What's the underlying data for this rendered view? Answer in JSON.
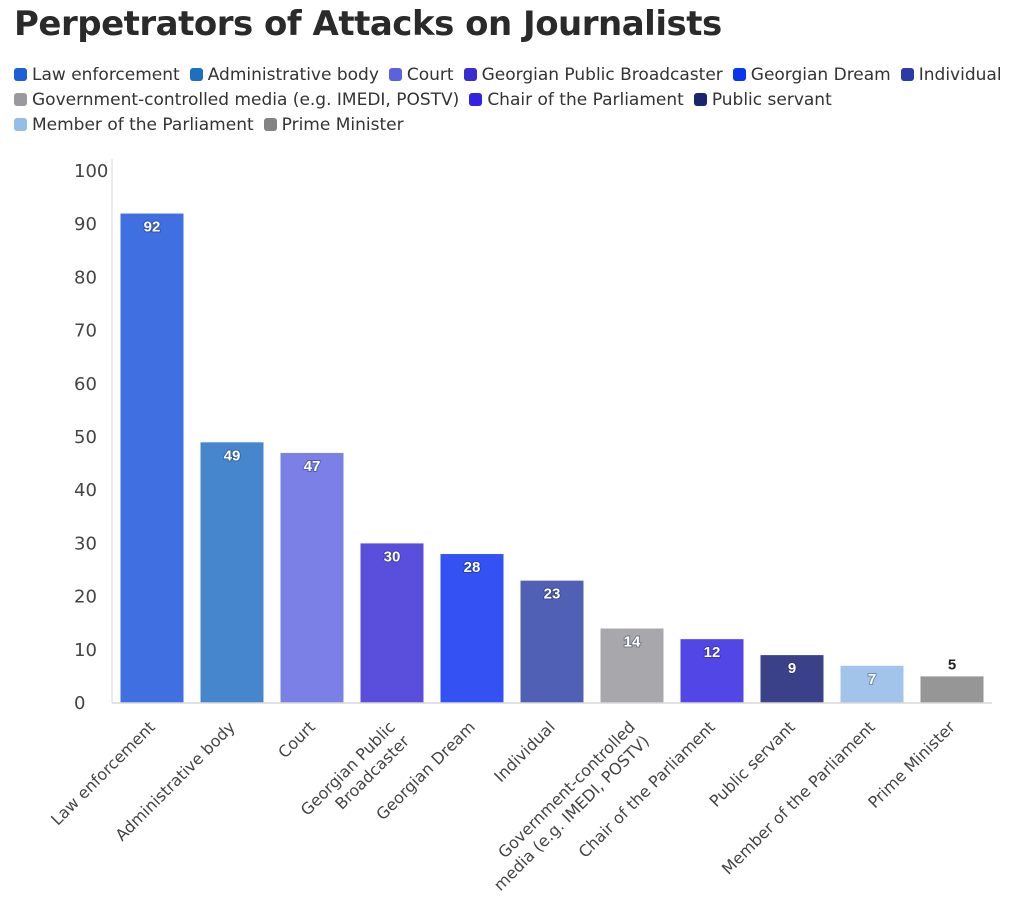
{
  "chart_data": {
    "type": "bar",
    "title": "Perpetrators of Attacks on Journalists",
    "xlabel": "",
    "ylabel": "",
    "ylim": [
      0,
      100
    ],
    "yticks": [
      0,
      10,
      20,
      30,
      40,
      50,
      60,
      70,
      80,
      90,
      100
    ],
    "grid": false,
    "legend_position": "top",
    "categories": [
      "Law enforcement",
      "Administrative body",
      "Court",
      "Georgian Public Broadcaster",
      "Georgian Dream",
      "Individual",
      "Government-controlled media (e.g. IMEDI, POSTV)",
      "Chair of the Parliament",
      "Public servant",
      "Member of the Parliament",
      "Prime Minister"
    ],
    "category_label_lines": [
      [
        "Law enforcement"
      ],
      [
        "Administrative body"
      ],
      [
        "Court"
      ],
      [
        "Georgian Public",
        "Broadcaster"
      ],
      [
        "Georgian Dream"
      ],
      [
        "Individual"
      ],
      [
        "Government-controlled",
        "media (e.g. IMEDI, POSTV)"
      ],
      [
        "Chair of the Parliament"
      ],
      [
        "Public servant"
      ],
      [
        "Member of the Parliament"
      ],
      [
        "Prime Minister"
      ]
    ],
    "values": [
      92,
      49,
      47,
      30,
      28,
      23,
      14,
      12,
      9,
      7,
      5
    ],
    "bar_colors": [
      "#3f6fe0",
      "#4686cc",
      "#7a80e6",
      "#5a4fdc",
      "#3451f3",
      "#5060b4",
      "#a8a8ac",
      "#5246e6",
      "#3b4189",
      "#a2c4ea",
      "#969696"
    ],
    "legend": [
      {
        "label": "Law enforcement",
        "color": "#1d5fd6"
      },
      {
        "label": "Administrative body",
        "color": "#1e6fc0"
      },
      {
        "label": "Court",
        "color": "#5a62df"
      },
      {
        "label": "Georgian Public Broadcaster",
        "color": "#3a2dd2"
      },
      {
        "label": "Georgian Dream",
        "color": "#0a36ee"
      },
      {
        "label": "Individual",
        "color": "#2b3ca6"
      },
      {
        "label": "Government-controlled media (e.g. IMEDI, POSTV)",
        "color": "#9a9a9e"
      },
      {
        "label": "Chair of the Parliament",
        "color": "#3322e2"
      },
      {
        "label": "Public servant",
        "color": "#1b2470"
      },
      {
        "label": "Member of the Parliament",
        "color": "#94bde8"
      },
      {
        "label": "Prime Minister",
        "color": "#838383"
      }
    ]
  }
}
